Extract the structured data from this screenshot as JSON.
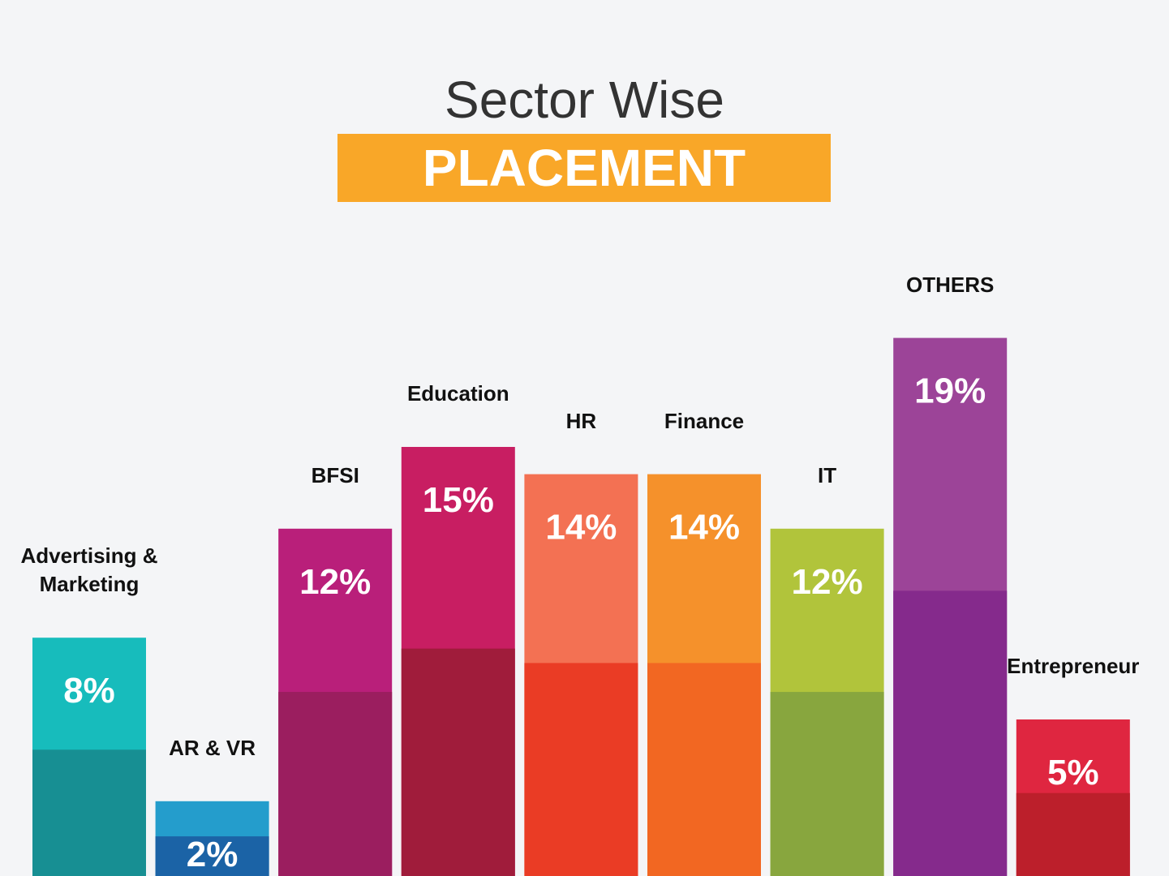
{
  "chart_data": {
    "type": "bar",
    "title": "Sector Wise",
    "subtitle": "PLACEMENT",
    "categories": [
      "Advertising & Marketing",
      "AR & VR",
      "BFSI",
      "Education",
      "HR",
      "Finance",
      "IT",
      "OTHERS",
      "Entrepreneur"
    ],
    "values": [
      8,
      2,
      12,
      15,
      14,
      14,
      12,
      19,
      5
    ],
    "value_labels": [
      "8%",
      "2%",
      "12%",
      "15%",
      "14%",
      "14%",
      "12%",
      "19%",
      "5%"
    ],
    "colors": [
      "#17bcbc",
      "#249dcc",
      "#b91f7a",
      "#c81e62",
      "#f37153",
      "#f5912b",
      "#b1c43b",
      "#9c4498",
      "#df2640"
    ],
    "shade_colors": [
      "#178f93",
      "#1b63a6",
      "#9b1e5f",
      "#a01c3b",
      "#ea3c25",
      "#f26722",
      "#88a63e",
      "#852a8c",
      "#bc1f2b"
    ]
  }
}
